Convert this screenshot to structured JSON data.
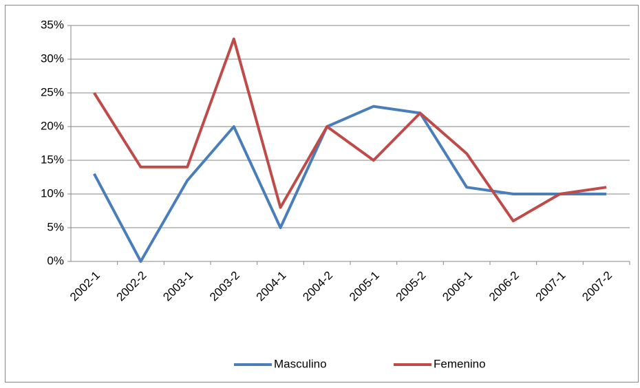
{
  "chart_data": {
    "type": "line",
    "categories": [
      "2002-1",
      "2002-2",
      "2003-1",
      "2003-2",
      "2004-1",
      "2004-2",
      "2005-1",
      "2005-2",
      "2006-1",
      "2006-2",
      "2007-1",
      "2007-2"
    ],
    "series": [
      {
        "name": "Masculino",
        "color": "#4a7ebb",
        "values": [
          13,
          0,
          12,
          20,
          5,
          20,
          23,
          22,
          11,
          10,
          10,
          10
        ]
      },
      {
        "name": "Femenino",
        "color": "#be4b48",
        "values": [
          25,
          14,
          14,
          33,
          8,
          20,
          15,
          22,
          16,
          6,
          10,
          11
        ]
      }
    ],
    "ylim": [
      0,
      35
    ],
    "yticks": [
      {
        "value": 0,
        "label": "0%"
      },
      {
        "value": 5,
        "label": "5%"
      },
      {
        "value": 10,
        "label": "10%"
      },
      {
        "value": 15,
        "label": "15%"
      },
      {
        "value": 20,
        "label": "20%"
      },
      {
        "value": 25,
        "label": "25%"
      },
      {
        "value": 30,
        "label": "30%"
      },
      {
        "value": 35,
        "label": "35%"
      }
    ],
    "grid": true,
    "legend": "bottom"
  }
}
